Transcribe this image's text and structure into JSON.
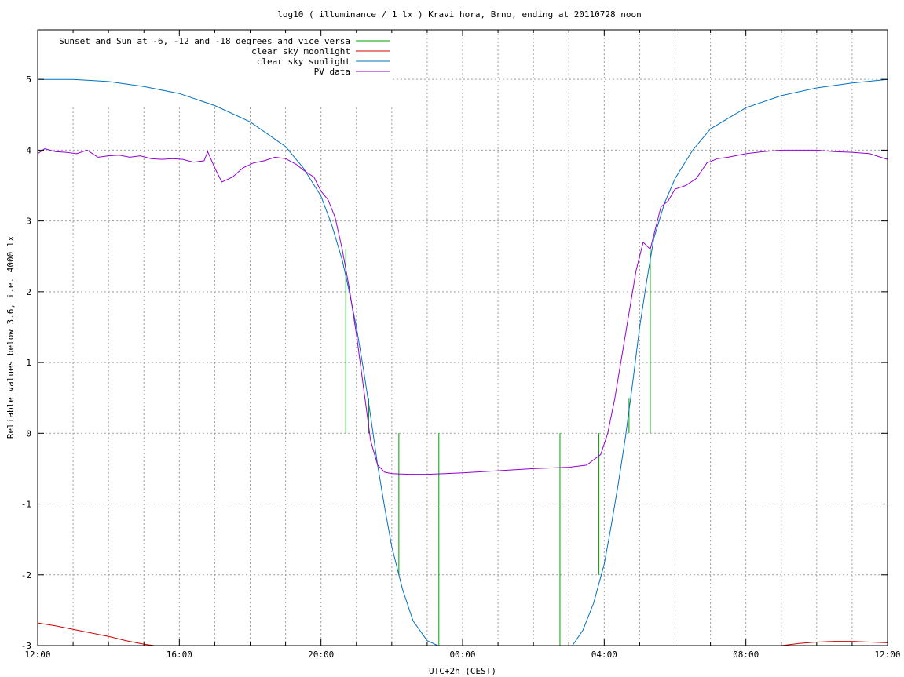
{
  "chart_data": {
    "type": "line",
    "title": "log10 ( illuminance / 1 lx ) Kravi hora, Brno, ending at 20110728 noon",
    "xlabel": "UTC+2h (CEST)",
    "ylabel": "Reliable values below 3.6, i.e. 4000 lx",
    "xlim": [
      12,
      36
    ],
    "ylim": [
      -3,
      5.7
    ],
    "grid": true,
    "legend_position": "top-left",
    "x_ticks": [
      {
        "v": 12,
        "label": "12:00"
      },
      {
        "v": 16,
        "label": "16:00"
      },
      {
        "v": 20,
        "label": "20:00"
      },
      {
        "v": 24,
        "label": "00:00"
      },
      {
        "v": 28,
        "label": "04:00"
      },
      {
        "v": 32,
        "label": "08:00"
      },
      {
        "v": 36,
        "label": "12:00"
      }
    ],
    "x_minor_ticks": [
      13,
      14,
      15,
      17,
      18,
      19,
      21,
      22,
      23,
      25,
      26,
      27,
      29,
      30,
      31,
      33,
      34,
      35
    ],
    "y_ticks": [
      {
        "v": -3,
        "label": "-3"
      },
      {
        "v": -2,
        "label": "-2"
      },
      {
        "v": -1,
        "label": "-1"
      },
      {
        "v": 0,
        "label": "0"
      },
      {
        "v": 1,
        "label": "1"
      },
      {
        "v": 2,
        "label": "2"
      },
      {
        "v": 3,
        "label": "3"
      },
      {
        "v": 4,
        "label": "4"
      },
      {
        "v": 5,
        "label": "5"
      }
    ],
    "series": [
      {
        "name": "Sunset and Sun at -6, -12 and -18 degrees and vice versa",
        "color": "#00a000",
        "kind": "impulses",
        "x": [
          20.7,
          21.35,
          22.2,
          23.33,
          26.75,
          27.85,
          28.7,
          29.3
        ],
        "y": [
          2.6,
          0.5,
          -2.0,
          -3.0,
          -3.0,
          -2.0,
          0.5,
          2.6
        ]
      },
      {
        "name": "clear sky moonlight",
        "color": "#d00000",
        "kind": "line",
        "segments": [
          {
            "x": [
              12.0,
              12.5,
              13.0,
              13.5,
              14.0,
              14.5,
              15.0,
              15.3
            ],
            "y": [
              -2.68,
              -2.72,
              -2.77,
              -2.82,
              -2.87,
              -2.93,
              -2.98,
              -3.0
            ]
          },
          {
            "x": [
              33.0,
              33.5,
              34.0,
              34.5,
              35.0,
              35.5,
              36.0
            ],
            "y": [
              -3.0,
              -2.97,
              -2.95,
              -2.94,
              -2.94,
              -2.95,
              -2.96
            ]
          }
        ]
      },
      {
        "name": "clear sky sunlight",
        "color": "#0070c0",
        "kind": "line",
        "x": [
          12.0,
          13.0,
          14.0,
          15.0,
          16.0,
          17.0,
          18.0,
          19.0,
          19.5,
          20.0,
          20.3,
          20.6,
          20.8,
          21.0,
          21.2,
          21.4,
          21.6,
          21.8,
          22.0,
          22.3,
          22.6,
          23.0,
          23.3,
          27.1,
          27.4,
          27.7,
          28.0,
          28.2,
          28.4,
          28.6,
          28.8,
          29.0,
          29.2,
          29.4,
          29.7,
          30.0,
          30.5,
          31.0,
          32.0,
          33.0,
          34.0,
          35.0,
          36.0
        ],
        "y": [
          5.0,
          5.0,
          4.97,
          4.9,
          4.8,
          4.63,
          4.4,
          4.05,
          3.75,
          3.35,
          2.95,
          2.45,
          2.0,
          1.5,
          0.9,
          0.25,
          -0.45,
          -1.05,
          -1.6,
          -2.2,
          -2.65,
          -2.93,
          -3.0,
          -3.0,
          -2.78,
          -2.4,
          -1.85,
          -1.3,
          -0.7,
          -0.05,
          0.7,
          1.5,
          2.15,
          2.75,
          3.25,
          3.6,
          4.0,
          4.3,
          4.6,
          4.77,
          4.88,
          4.95,
          5.0
        ]
      },
      {
        "name": "PV data",
        "color": "#9400d3",
        "kind": "line",
        "x": [
          12.0,
          12.2,
          12.5,
          12.8,
          13.1,
          13.4,
          13.7,
          14.0,
          14.3,
          14.6,
          14.9,
          15.2,
          15.5,
          15.8,
          16.1,
          16.4,
          16.7,
          16.8,
          17.0,
          17.2,
          17.5,
          17.8,
          18.1,
          18.4,
          18.7,
          19.0,
          19.3,
          19.5,
          19.8,
          20.0,
          20.2,
          20.4,
          20.6,
          20.8,
          21.0,
          21.2,
          21.4,
          21.6,
          21.8,
          22.0,
          22.5,
          23.0,
          23.5,
          24.0,
          25.0,
          26.0,
          27.0,
          27.5,
          27.9,
          28.1,
          28.3,
          28.5,
          28.7,
          28.9,
          29.1,
          29.2,
          29.3,
          29.5,
          29.6,
          29.8,
          30.0,
          30.3,
          30.6,
          30.9,
          31.2,
          31.5,
          32.0,
          32.5,
          33.0,
          33.5,
          34.0,
          34.5,
          35.0,
          35.5,
          35.8,
          36.0
        ],
        "y": [
          3.95,
          4.02,
          3.98,
          3.97,
          3.95,
          4.0,
          3.9,
          3.92,
          3.93,
          3.9,
          3.92,
          3.88,
          3.87,
          3.88,
          3.87,
          3.83,
          3.85,
          3.98,
          3.75,
          3.55,
          3.62,
          3.75,
          3.82,
          3.85,
          3.9,
          3.88,
          3.8,
          3.72,
          3.62,
          3.42,
          3.3,
          3.05,
          2.6,
          2.05,
          1.4,
          0.65,
          -0.1,
          -0.45,
          -0.55,
          -0.57,
          -0.58,
          -0.58,
          -0.57,
          -0.56,
          -0.53,
          -0.5,
          -0.48,
          -0.45,
          -0.3,
          0.0,
          0.5,
          1.1,
          1.7,
          2.3,
          2.7,
          2.65,
          2.6,
          3.0,
          3.2,
          3.28,
          3.45,
          3.5,
          3.6,
          3.82,
          3.88,
          3.9,
          3.95,
          3.98,
          4.0,
          4.0,
          4.0,
          3.98,
          3.97,
          3.95,
          3.9,
          3.87
        ]
      }
    ]
  }
}
